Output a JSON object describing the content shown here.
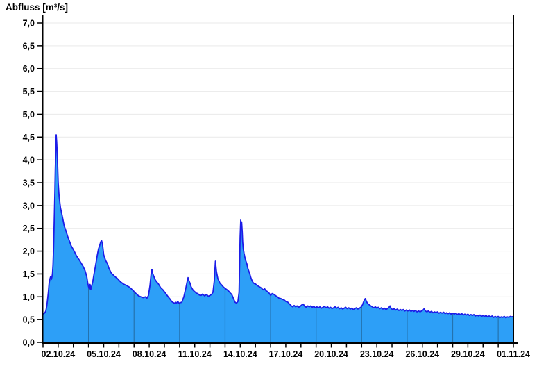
{
  "title": "Abfluss [m³/s]",
  "chart_data": {
    "type": "area",
    "title": "Abfluss [m³/s]",
    "xlabel": "",
    "ylabel": "Abfluss [m³/s]",
    "unit": "m³/s",
    "series_name": "Abfluss",
    "grid": true,
    "legend": false,
    "ylim": [
      0.0,
      7.0
    ],
    "y_tick_step": 0.5,
    "y_tick_labels": [
      "0,0",
      "0,5",
      "1,0",
      "1,5",
      "2,0",
      "2,5",
      "3,0",
      "3,5",
      "4,0",
      "4,5",
      "5,0",
      "5,5",
      "6,0",
      "6,5",
      "7,0"
    ],
    "x_start_date": "01.10.24",
    "x_end_date": "01.11.24",
    "x_total_days": 31,
    "x_minor_tick_every_days": 1,
    "x_tick_labels": [
      {
        "day": 1,
        "label": "02.10.24"
      },
      {
        "day": 4,
        "label": "05.10.24"
      },
      {
        "day": 7,
        "label": "08.10.24"
      },
      {
        "day": 10,
        "label": "11.10.24"
      },
      {
        "day": 13,
        "label": "14.10.24"
      },
      {
        "day": 16,
        "label": "17.10.24"
      },
      {
        "day": 19,
        "label": "20.10.24"
      },
      {
        "day": 22,
        "label": "23.10.24"
      },
      {
        "day": 25,
        "label": "26.10.24"
      },
      {
        "day": 28,
        "label": "29.10.24"
      },
      {
        "day": 31,
        "label": "01.11.24"
      }
    ],
    "vertical_gridline_days": [
      3,
      6,
      9,
      12,
      15,
      18,
      21,
      24,
      27,
      30
    ],
    "points": [
      [
        0,
        0.62
      ],
      [
        0.1,
        0.64
      ],
      [
        0.18,
        0.68
      ],
      [
        0.25,
        0.8
      ],
      [
        0.3,
        0.95
      ],
      [
        0.35,
        1.1
      ],
      [
        0.4,
        1.28
      ],
      [
        0.45,
        1.38
      ],
      [
        0.5,
        1.44
      ],
      [
        0.55,
        1.38
      ],
      [
        0.58,
        1.42
      ],
      [
        0.62,
        1.5
      ],
      [
        0.66,
        1.7
      ],
      [
        0.7,
        2.1
      ],
      [
        0.74,
        2.7
      ],
      [
        0.78,
        3.3
      ],
      [
        0.81,
        3.8
      ],
      [
        0.84,
        4.2
      ],
      [
        0.87,
        4.55
      ],
      [
        0.9,
        4.4
      ],
      [
        0.94,
        4.1
      ],
      [
        1,
        3.5
      ],
      [
        1.06,
        3.2
      ],
      [
        1.15,
        2.95
      ],
      [
        1.28,
        2.75
      ],
      [
        1.4,
        2.55
      ],
      [
        1.51,
        2.45
      ],
      [
        1.62,
        2.33
      ],
      [
        1.74,
        2.22
      ],
      [
        1.85,
        2.12
      ],
      [
        1.97,
        2.05
      ],
      [
        2.1,
        1.97
      ],
      [
        2.2,
        1.9
      ],
      [
        2.3,
        1.85
      ],
      [
        2.42,
        1.79
      ],
      [
        2.53,
        1.73
      ],
      [
        2.65,
        1.66
      ],
      [
        2.76,
        1.58
      ],
      [
        2.88,
        1.45
      ],
      [
        2.95,
        1.3
      ],
      [
        3,
        1.22
      ],
      [
        3.06,
        1.17
      ],
      [
        3.1,
        1.27
      ],
      [
        3.15,
        1.16
      ],
      [
        3.2,
        1.23
      ],
      [
        3.28,
        1.33
      ],
      [
        3.34,
        1.45
      ],
      [
        3.47,
        1.7
      ],
      [
        3.57,
        1.9
      ],
      [
        3.66,
        2.05
      ],
      [
        3.73,
        2.12
      ],
      [
        3.8,
        2.2
      ],
      [
        3.86,
        2.23
      ],
      [
        3.92,
        2.16
      ],
      [
        4,
        1.92
      ],
      [
        4.12,
        1.8
      ],
      [
        4.25,
        1.72
      ],
      [
        4.35,
        1.62
      ],
      [
        4.5,
        1.52
      ],
      [
        4.62,
        1.48
      ],
      [
        4.75,
        1.44
      ],
      [
        4.9,
        1.4
      ],
      [
        5.1,
        1.33
      ],
      [
        5.3,
        1.28
      ],
      [
        5.5,
        1.25
      ],
      [
        5.7,
        1.21
      ],
      [
        5.9,
        1.15
      ],
      [
        6.1,
        1.08
      ],
      [
        6.3,
        1.02
      ],
      [
        6.45,
        1
      ],
      [
        6.6,
        0.98
      ],
      [
        6.75,
        1
      ],
      [
        6.85,
        0.97
      ],
      [
        6.95,
        1.03
      ],
      [
        7.05,
        1.25
      ],
      [
        7.12,
        1.48
      ],
      [
        7.18,
        1.6
      ],
      [
        7.24,
        1.5
      ],
      [
        7.3,
        1.45
      ],
      [
        7.38,
        1.38
      ],
      [
        7.48,
        1.33
      ],
      [
        7.59,
        1.29
      ],
      [
        7.75,
        1.2
      ],
      [
        7.91,
        1.15
      ],
      [
        8.14,
        1.05
      ],
      [
        8.25,
        1
      ],
      [
        8.37,
        0.95
      ],
      [
        8.5,
        0.89
      ],
      [
        8.6,
        0.87
      ],
      [
        8.66,
        0.85
      ],
      [
        8.73,
        0.88
      ],
      [
        8.8,
        0.86
      ],
      [
        8.88,
        0.9
      ],
      [
        8.96,
        0.86
      ],
      [
        9.05,
        0.87
      ],
      [
        9.15,
        0.88
      ],
      [
        9.28,
        1
      ],
      [
        9.42,
        1.2
      ],
      [
        9.51,
        1.35
      ],
      [
        9.56,
        1.42
      ],
      [
        9.62,
        1.35
      ],
      [
        9.69,
        1.3
      ],
      [
        9.76,
        1.22
      ],
      [
        9.83,
        1.18
      ],
      [
        9.9,
        1.14
      ],
      [
        9.97,
        1.12
      ],
      [
        10.1,
        1.08
      ],
      [
        10.2,
        1.07
      ],
      [
        10.3,
        1.04
      ],
      [
        10.42,
        1.03
      ],
      [
        10.52,
        1.06
      ],
      [
        10.65,
        1.02
      ],
      [
        10.78,
        1.05
      ],
      [
        10.9,
        1.01
      ],
      [
        11,
        1.03
      ],
      [
        11.11,
        1.05
      ],
      [
        11.2,
        1.1
      ],
      [
        11.29,
        1.35
      ],
      [
        11.36,
        1.78
      ],
      [
        11.43,
        1.55
      ],
      [
        11.52,
        1.4
      ],
      [
        11.66,
        1.3
      ],
      [
        11.8,
        1.25
      ],
      [
        11.9,
        1.21
      ],
      [
        12.02,
        1.18
      ],
      [
        12.14,
        1.15
      ],
      [
        12.25,
        1.12
      ],
      [
        12.35,
        1.08
      ],
      [
        12.44,
        1.05
      ],
      [
        12.57,
        0.95
      ],
      [
        12.66,
        0.88
      ],
      [
        12.76,
        0.86
      ],
      [
        12.85,
        0.9
      ],
      [
        12.92,
        1.1
      ],
      [
        12.96,
        1.7
      ],
      [
        12.99,
        2.3
      ],
      [
        13.03,
        2.68
      ],
      [
        13.06,
        2.58
      ],
      [
        13.09,
        2.64
      ],
      [
        13.13,
        2.42
      ],
      [
        13.16,
        2.2
      ],
      [
        13.2,
        2.05
      ],
      [
        13.25,
        1.95
      ],
      [
        13.3,
        1.87
      ],
      [
        13.35,
        1.8
      ],
      [
        13.44,
        1.72
      ],
      [
        13.5,
        1.62
      ],
      [
        13.63,
        1.5
      ],
      [
        13.7,
        1.42
      ],
      [
        13.78,
        1.35
      ],
      [
        13.85,
        1.31
      ],
      [
        13.92,
        1.29
      ],
      [
        14,
        1.28
      ],
      [
        14.08,
        1.26
      ],
      [
        14.2,
        1.23
      ],
      [
        14.31,
        1.21
      ],
      [
        14.4,
        1.19
      ],
      [
        14.45,
        1.17
      ],
      [
        14.54,
        1.15
      ],
      [
        14.6,
        1.18
      ],
      [
        14.7,
        1.13
      ],
      [
        14.77,
        1.12
      ],
      [
        14.9,
        1.08
      ],
      [
        15,
        1.03
      ],
      [
        15.1,
        1.07
      ],
      [
        15.23,
        1.05
      ],
      [
        15.35,
        1.02
      ],
      [
        15.45,
        1
      ],
      [
        15.55,
        0.97
      ],
      [
        15.68,
        0.96
      ],
      [
        15.8,
        0.94
      ],
      [
        15.9,
        0.93
      ],
      [
        16,
        0.9
      ],
      [
        16.14,
        0.88
      ],
      [
        16.25,
        0.84
      ],
      [
        16.37,
        0.8
      ],
      [
        16.45,
        0.78
      ],
      [
        16.55,
        0.81
      ],
      [
        16.65,
        0.78
      ],
      [
        16.75,
        0.8
      ],
      [
        16.85,
        0.77
      ],
      [
        16.95,
        0.79
      ],
      [
        17.05,
        0.82
      ],
      [
        17.15,
        0.84
      ],
      [
        17.25,
        0.79
      ],
      [
        17.35,
        0.77
      ],
      [
        17.45,
        0.8
      ],
      [
        17.55,
        0.78
      ],
      [
        17.65,
        0.8
      ],
      [
        17.75,
        0.77
      ],
      [
        17.85,
        0.79
      ],
      [
        17.95,
        0.76
      ],
      [
        18.05,
        0.78
      ],
      [
        18.15,
        0.76
      ],
      [
        18.25,
        0.78
      ],
      [
        18.35,
        0.75
      ],
      [
        18.45,
        0.77
      ],
      [
        18.55,
        0.79
      ],
      [
        18.65,
        0.76
      ],
      [
        18.75,
        0.78
      ],
      [
        18.85,
        0.75
      ],
      [
        18.95,
        0.77
      ],
      [
        19.05,
        0.74
      ],
      [
        19.15,
        0.76
      ],
      [
        19.25,
        0.78
      ],
      [
        19.35,
        0.75
      ],
      [
        19.45,
        0.77
      ],
      [
        19.55,
        0.74
      ],
      [
        19.65,
        0.76
      ],
      [
        19.75,
        0.73
      ],
      [
        19.85,
        0.75
      ],
      [
        19.95,
        0.77
      ],
      [
        20.05,
        0.74
      ],
      [
        20.15,
        0.76
      ],
      [
        20.25,
        0.73
      ],
      [
        20.35,
        0.75
      ],
      [
        20.45,
        0.72
      ],
      [
        20.55,
        0.74
      ],
      [
        20.65,
        0.76
      ],
      [
        20.75,
        0.73
      ],
      [
        20.85,
        0.75
      ],
      [
        20.95,
        0.77
      ],
      [
        21.05,
        0.82
      ],
      [
        21.12,
        0.88
      ],
      [
        21.18,
        0.93
      ],
      [
        21.24,
        0.96
      ],
      [
        21.3,
        0.91
      ],
      [
        21.36,
        0.87
      ],
      [
        21.44,
        0.84
      ],
      [
        21.52,
        0.82
      ],
      [
        21.6,
        0.8
      ],
      [
        21.7,
        0.78
      ],
      [
        21.8,
        0.76
      ],
      [
        21.9,
        0.78
      ],
      [
        22,
        0.75
      ],
      [
        22.1,
        0.77
      ],
      [
        22.2,
        0.74
      ],
      [
        22.3,
        0.76
      ],
      [
        22.4,
        0.73
      ],
      [
        22.5,
        0.75
      ],
      [
        22.6,
        0.72
      ],
      [
        22.7,
        0.74
      ],
      [
        22.8,
        0.77
      ],
      [
        22.87,
        0.8
      ],
      [
        22.95,
        0.74
      ],
      [
        23.05,
        0.72
      ],
      [
        23.15,
        0.74
      ],
      [
        23.25,
        0.71
      ],
      [
        23.35,
        0.73
      ],
      [
        23.45,
        0.7
      ],
      [
        23.55,
        0.72
      ],
      [
        23.65,
        0.7
      ],
      [
        23.75,
        0.72
      ],
      [
        23.85,
        0.69
      ],
      [
        23.95,
        0.71
      ],
      [
        24.05,
        0.69
      ],
      [
        24.15,
        0.71
      ],
      [
        24.25,
        0.68
      ],
      [
        24.35,
        0.7
      ],
      [
        24.45,
        0.68
      ],
      [
        24.55,
        0.7
      ],
      [
        24.65,
        0.67
      ],
      [
        24.75,
        0.69
      ],
      [
        24.85,
        0.67
      ],
      [
        24.95,
        0.69
      ],
      [
        25.05,
        0.71
      ],
      [
        25.12,
        0.74
      ],
      [
        25.2,
        0.69
      ],
      [
        25.3,
        0.67
      ],
      [
        25.4,
        0.69
      ],
      [
        25.5,
        0.66
      ],
      [
        25.6,
        0.68
      ],
      [
        25.7,
        0.65
      ],
      [
        25.8,
        0.67
      ],
      [
        25.9,
        0.65
      ],
      [
        26,
        0.67
      ],
      [
        26.1,
        0.64
      ],
      [
        26.2,
        0.66
      ],
      [
        26.3,
        0.64
      ],
      [
        26.4,
        0.66
      ],
      [
        26.5,
        0.63
      ],
      [
        26.6,
        0.65
      ],
      [
        26.7,
        0.63
      ],
      [
        26.8,
        0.65
      ],
      [
        26.9,
        0.62
      ],
      [
        27,
        0.64
      ],
      [
        27.1,
        0.62
      ],
      [
        27.2,
        0.64
      ],
      [
        27.3,
        0.61
      ],
      [
        27.4,
        0.63
      ],
      [
        27.5,
        0.61
      ],
      [
        27.6,
        0.63
      ],
      [
        27.7,
        0.6
      ],
      [
        27.8,
        0.62
      ],
      [
        27.9,
        0.6
      ],
      [
        28,
        0.62
      ],
      [
        28.1,
        0.59
      ],
      [
        28.2,
        0.61
      ],
      [
        28.3,
        0.59
      ],
      [
        28.4,
        0.61
      ],
      [
        28.5,
        0.58
      ],
      [
        28.6,
        0.6
      ],
      [
        28.7,
        0.58
      ],
      [
        28.8,
        0.6
      ],
      [
        28.9,
        0.57
      ],
      [
        29,
        0.59
      ],
      [
        29.1,
        0.57
      ],
      [
        29.2,
        0.59
      ],
      [
        29.3,
        0.56
      ],
      [
        29.4,
        0.58
      ],
      [
        29.5,
        0.56
      ],
      [
        29.6,
        0.58
      ],
      [
        29.7,
        0.55
      ],
      [
        29.8,
        0.57
      ],
      [
        29.9,
        0.55
      ],
      [
        30,
        0.57
      ],
      [
        30.1,
        0.54
      ],
      [
        30.2,
        0.56
      ],
      [
        30.3,
        0.55
      ],
      [
        30.4,
        0.57
      ],
      [
        30.5,
        0.54
      ],
      [
        30.6,
        0.56
      ],
      [
        30.7,
        0.55
      ],
      [
        30.8,
        0.57
      ],
      [
        30.9,
        0.56
      ],
      [
        31,
        0.57
      ]
    ]
  },
  "colors": {
    "fill": "#2D9FF7",
    "line": "#1C1CE8",
    "h_grid": "#E9E9E9",
    "v_grid_over_fill": "#2472AE",
    "axis": "#000000",
    "text": "#000000",
    "background": "#FFFFFF"
  }
}
